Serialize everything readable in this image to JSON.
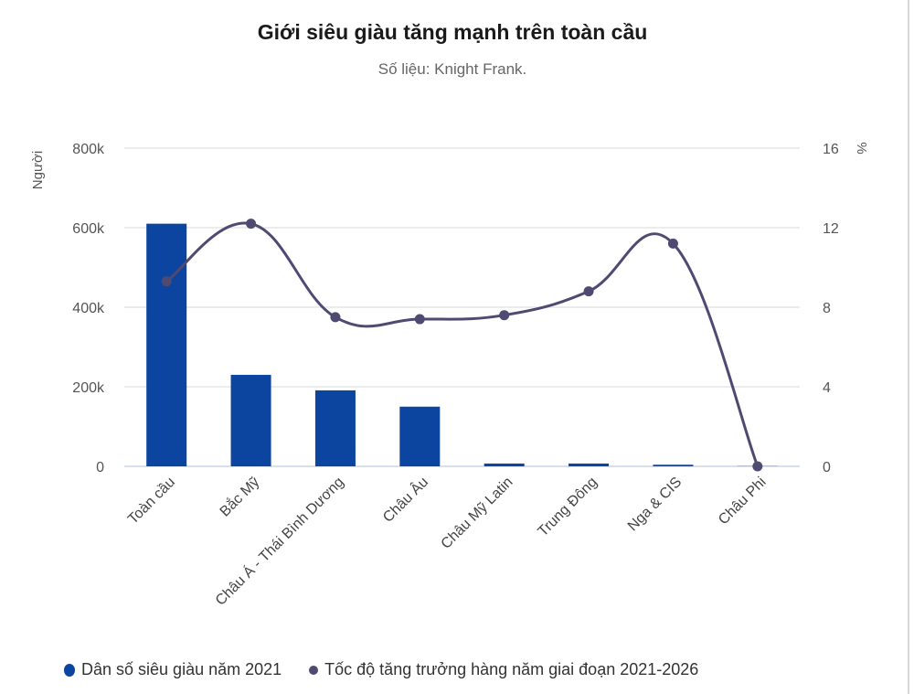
{
  "title": "Giới siêu giàu tăng mạnh trên toàn cầu",
  "subtitle": "Số liệu: Knight Frank.",
  "colors": {
    "bar": "#0b45a0",
    "line": "#4e4a72",
    "grid": "#e6e6e6",
    "axis": "#ccd6eb"
  },
  "legend": [
    {
      "label": "Dân số siêu giàu năm 2021",
      "color": "#0b45a0"
    },
    {
      "label": "Tốc độ tăng trưởng hàng năm giai đoạn 2021-2026",
      "color": "#4e4a72"
    }
  ],
  "chart_data": {
    "type": "bar+line",
    "title": "Giới siêu giàu tăng mạnh trên toàn cầu",
    "subtitle": "Số liệu: Knight Frank.",
    "categories": [
      "Toàn cầu",
      "Bắc Mỹ",
      "Châu Á - Thái Bình Dương",
      "Châu Âu",
      "Châu Mỹ Latin",
      "Trung Đông",
      "Nga & CIS",
      "Châu Phi"
    ],
    "series": [
      {
        "name": "Dân số siêu giàu năm 2021",
        "type": "bar",
        "axis": "left",
        "values": [
          610000,
          230000,
          191000,
          150000,
          7000,
          7000,
          4000,
          500
        ]
      },
      {
        "name": "Tốc độ tăng trưởng hàng năm giai đoạn 2021-2026",
        "type": "spline",
        "axis": "right",
        "values": [
          9.3,
          12.2,
          7.5,
          7.4,
          7.6,
          8.8,
          11.2,
          0
        ]
      }
    ],
    "ylabel": "Người",
    "ylabel_right": "%",
    "ylim": [
      0,
      800000
    ],
    "ylim_right": [
      0,
      16
    ],
    "yticks": [
      "0",
      "200k",
      "400k",
      "600k",
      "800k"
    ],
    "yticks_right": [
      "0",
      "4",
      "8",
      "12",
      "16"
    ],
    "grid": true,
    "legend_position": "bottom"
  }
}
